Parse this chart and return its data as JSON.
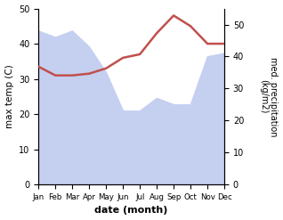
{
  "months": [
    1,
    2,
    3,
    4,
    5,
    6,
    7,
    8,
    9,
    10,
    11,
    12
  ],
  "month_labels": [
    "Jan",
    "Feb",
    "Mar",
    "Apr",
    "May",
    "Jun",
    "Jul",
    "Aug",
    "Sep",
    "Oct",
    "Nov",
    "Dec"
  ],
  "precipitation": [
    48,
    46,
    48,
    43,
    35,
    23,
    23,
    27,
    25,
    25,
    40,
    41
  ],
  "temperature": [
    33.5,
    31,
    31,
    31.5,
    33,
    36,
    37,
    43,
    48,
    45,
    40,
    40
  ],
  "temp_color": "#c0504d",
  "precip_fill_color": "#c5cff0",
  "xlabel": "date (month)",
  "ylabel_left": "max temp (C)",
  "ylabel_right": "med. precipitation\n(kg/m2)",
  "ylim_left": [
    0,
    50
  ],
  "ylim_right": [
    0,
    55
  ],
  "yticks_left": [
    0,
    10,
    20,
    30,
    40,
    50
  ],
  "yticks_right": [
    0,
    10,
    20,
    30,
    40,
    50
  ],
  "background_color": "#ffffff",
  "line_width": 1.8
}
